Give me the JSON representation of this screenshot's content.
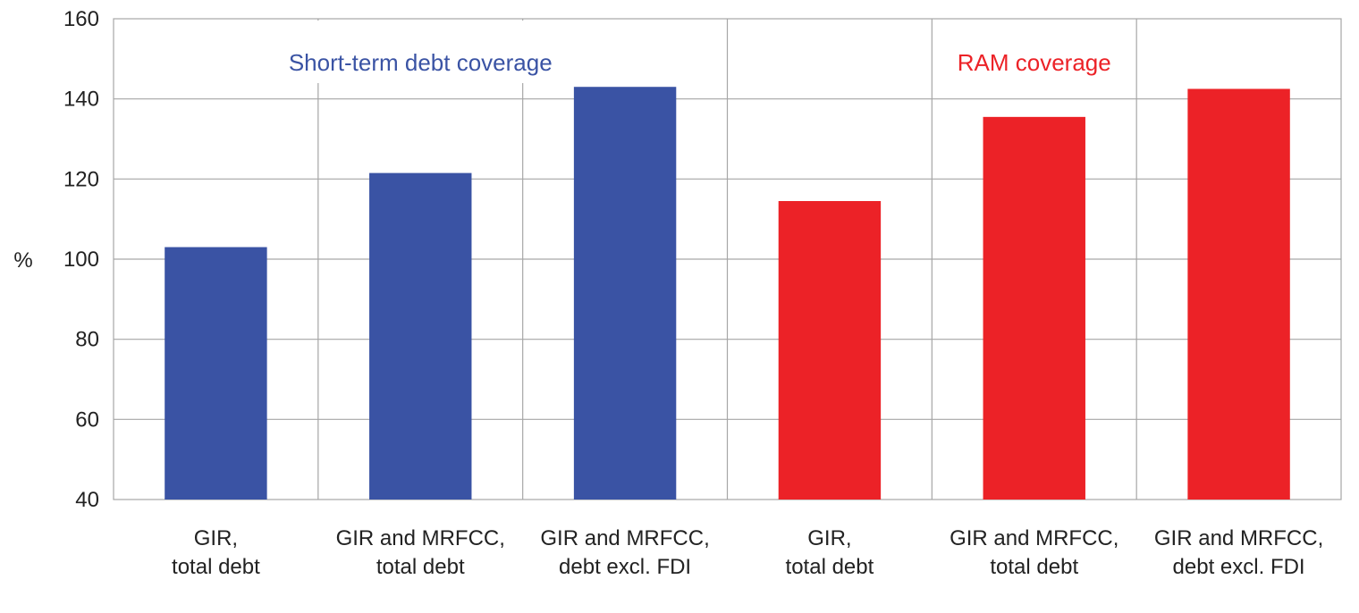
{
  "chart_data": {
    "type": "bar",
    "ylabel": "%",
    "ylim": [
      40,
      160
    ],
    "yticks": [
      40,
      60,
      80,
      100,
      120,
      140,
      160
    ],
    "grid": true,
    "groups": [
      {
        "name": "Short-term debt coverage",
        "color": "#3A53A4",
        "categories": [
          [
            "GIR,",
            "total debt"
          ],
          [
            "GIR and MRFCC,",
            "total debt"
          ],
          [
            "GIR and  MRFCC,",
            "debt excl. FDI"
          ]
        ],
        "values": [
          103,
          121.5,
          143
        ]
      },
      {
        "name": "RAM coverage",
        "color": "#EC2227",
        "categories": [
          [
            "GIR,",
            "total debt"
          ],
          [
            "GIR and MRFCC,",
            "total debt"
          ],
          [
            "GIR and MRFCC,",
            "debt excl. FDI"
          ]
        ],
        "values": [
          114.5,
          135.5,
          142.5
        ]
      }
    ]
  },
  "colors": {
    "grid": "#a6a6a6",
    "text": "#222222"
  }
}
